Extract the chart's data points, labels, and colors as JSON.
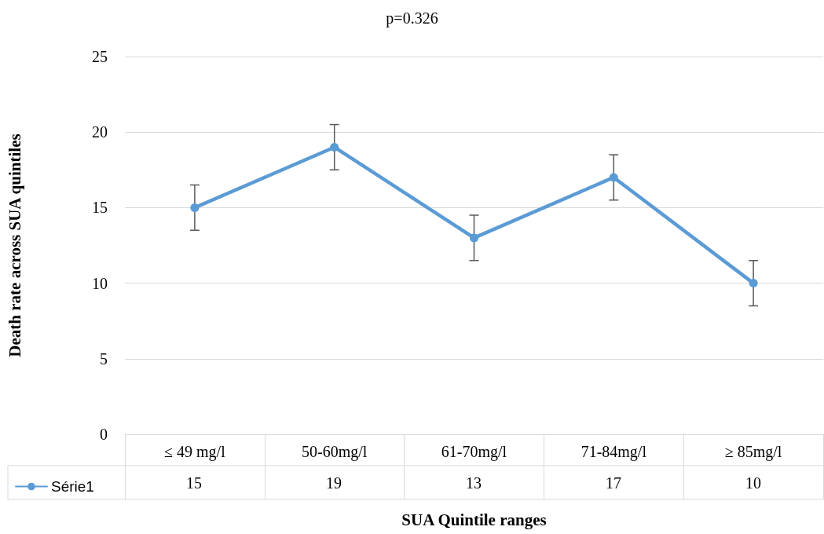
{
  "chart_data": {
    "type": "line",
    "title": "p=0.326",
    "xlabel": "SUA Quintile ranges",
    "ylabel": "Death rate across SUA quintiles",
    "categories": [
      "≤ 49 mg/l",
      "50-60mg/l",
      "61-70mg/l",
      "71-84mg/l",
      "≥ 85mg/l"
    ],
    "series": [
      {
        "name": "Série1",
        "color": "#5b9bd5",
        "values": [
          15,
          19,
          13,
          17,
          10
        ],
        "errors": [
          1.5,
          1.5,
          1.5,
          1.5,
          1.5
        ]
      }
    ],
    "ylim": [
      0,
      25
    ],
    "yticks": [
      0,
      5,
      10,
      15,
      20,
      25
    ],
    "grid": "y",
    "legend": "bottom left",
    "marker": "circle",
    "line_style": "solid",
    "data_labels": true
  }
}
